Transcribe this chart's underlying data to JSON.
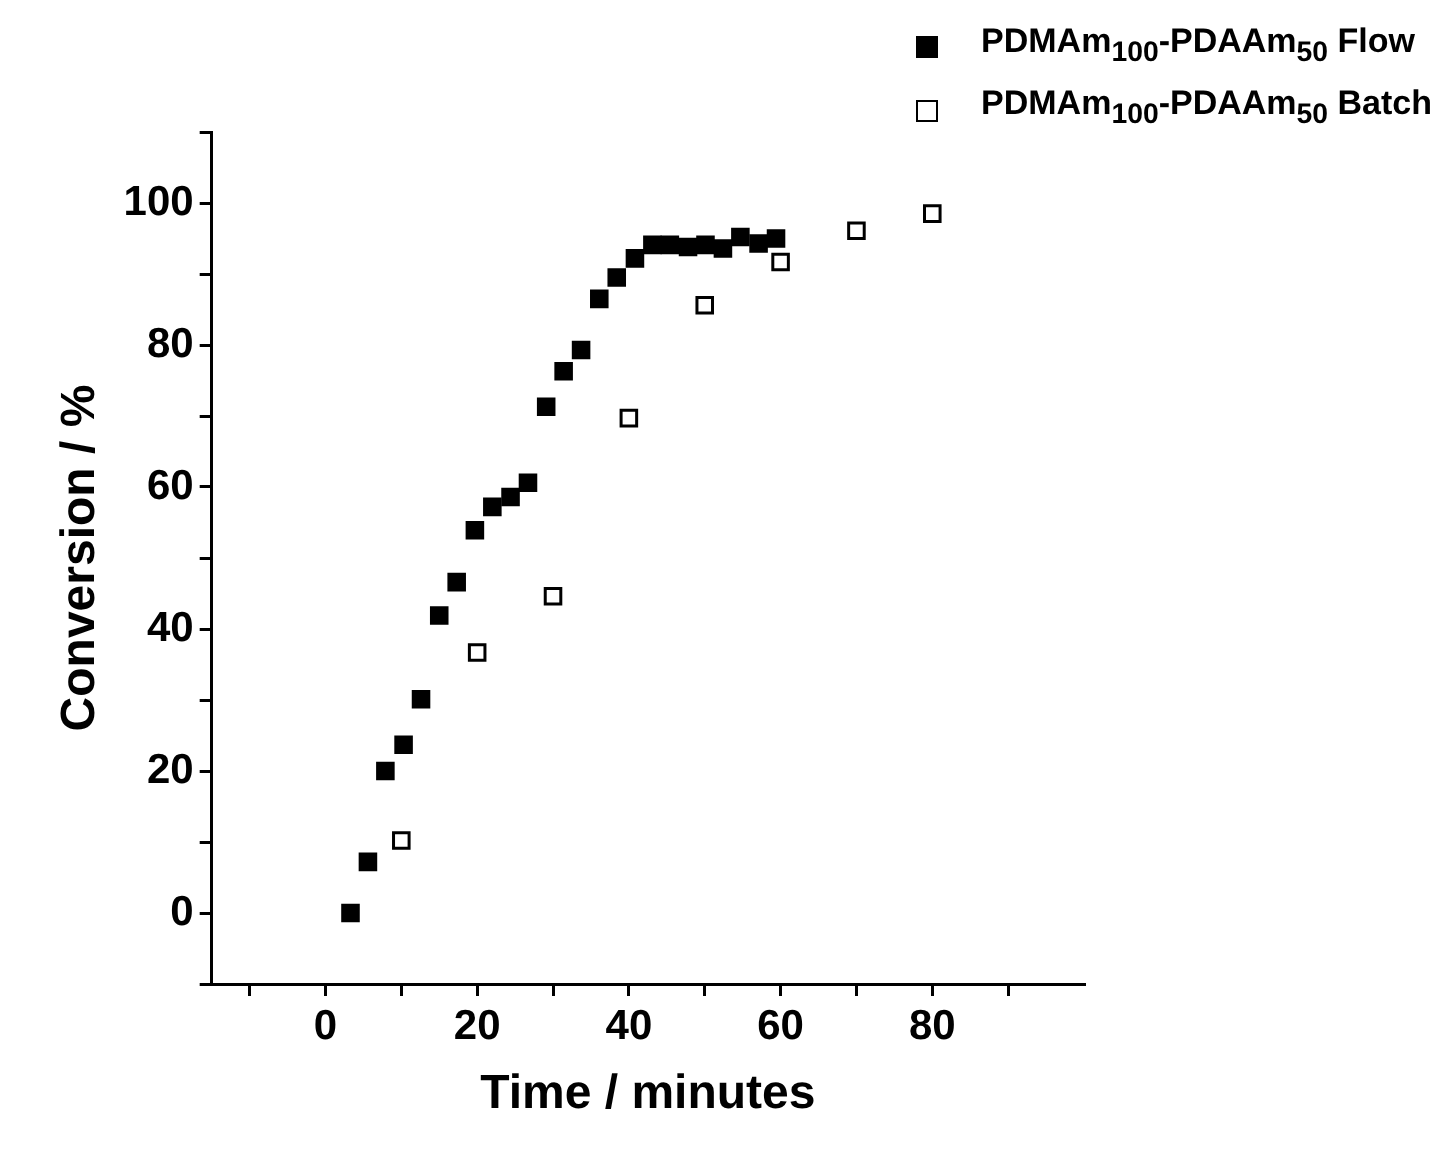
{
  "chart_data": {
    "type": "scatter",
    "xlabel": "Time / minutes",
    "ylabel": "Conversion / %",
    "xlim": [
      -15,
      100
    ],
    "ylim": [
      -10,
      110
    ],
    "xticks": [
      {
        "value": -10,
        "label": null
      },
      0,
      {
        "value": 10,
        "label": null
      },
      20,
      {
        "value": 30,
        "label": null
      },
      40,
      {
        "value": 50,
        "label": null
      },
      60,
      {
        "value": 70,
        "label": null
      },
      80,
      {
        "value": 90,
        "label": null
      }
    ],
    "yticks": [
      {
        "value": -10,
        "label": null
      },
      0,
      {
        "value": 10,
        "label": null
      },
      20,
      {
        "value": 30,
        "label": null
      },
      40,
      {
        "value": 50,
        "label": null
      },
      60,
      {
        "value": 70,
        "label": null
      },
      80,
      {
        "value": 90,
        "label": null
      },
      100,
      {
        "value": 110,
        "label": null
      }
    ],
    "grid": false,
    "legend": "top right",
    "marker": "square",
    "series": [
      {
        "name": "PDMAm$_{100}$-PDAAm$_{50}$ Flow",
        "color": "#000000",
        "x": [
          3.3,
          5.6,
          7.9,
          10.3,
          12.6,
          15.0,
          17.3,
          19.7,
          22.0,
          24.4,
          26.7,
          29.1,
          31.4,
          33.7,
          36.1,
          38.4,
          40.8,
          43.1,
          45.4,
          47.8,
          50.1,
          52.4,
          54.7,
          57.1,
          59.4
        ],
        "values": [
          0,
          7.2,
          20.0,
          23.7,
          30.1,
          41.9,
          46.6,
          53.9,
          57.2,
          58.6,
          60.6,
          71.3,
          76.3,
          79.3,
          86.5,
          89.5,
          92.2,
          94.1,
          94.1,
          93.8,
          94.1,
          93.6,
          95.2,
          94.3,
          95.0
        ]
      },
      {
        "name": "PDMAm$_{100}$-PDAAm$_{50}$ Batch",
        "color": "#000000",
        "x": [
          10,
          20,
          30,
          40,
          50,
          60,
          70,
          80
        ],
        "values": [
          10.2,
          36.7,
          44.6,
          69.7,
          85.6,
          91.7,
          96.1,
          98.5
        ]
      }
    ]
  }
}
